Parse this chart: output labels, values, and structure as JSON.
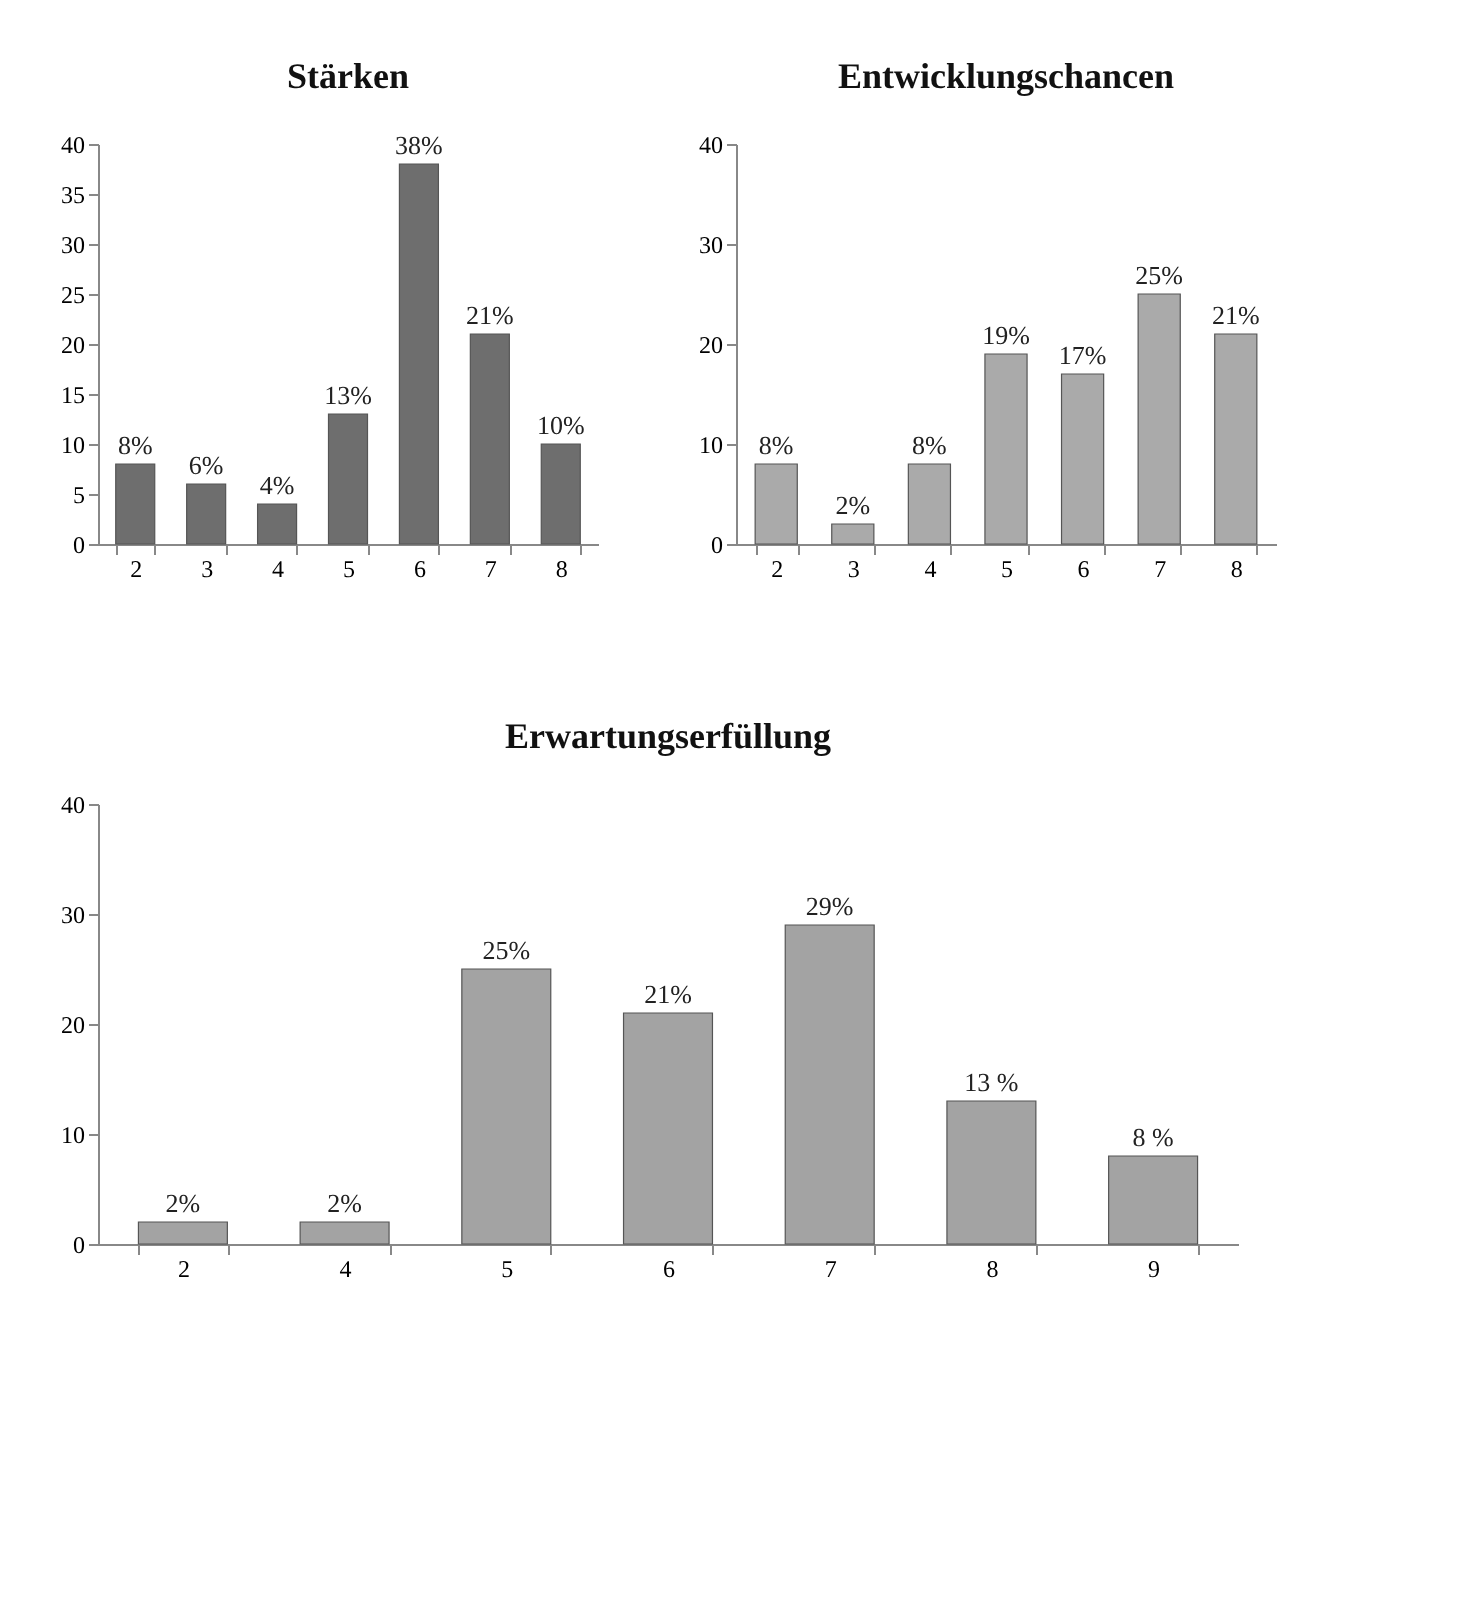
{
  "chart_data": [
    {
      "type": "bar",
      "title": "Stärken",
      "categories": [
        "2",
        "3",
        "4",
        "5",
        "6",
        "7",
        "8"
      ],
      "values": [
        8,
        6,
        4,
        13,
        38,
        21,
        10
      ],
      "value_labels": [
        "8%",
        "6%",
        "4%",
        "13%",
        "38%",
        "21%",
        "10%"
      ],
      "color": "#6e6e6e",
      "ylim": [
        0,
        40
      ],
      "yticks": [
        0,
        5,
        10,
        15,
        20,
        25,
        30,
        35,
        40
      ],
      "grid": false
    },
    {
      "type": "bar",
      "title": "Entwicklungschancen",
      "categories": [
        "2",
        "3",
        "4",
        "5",
        "6",
        "7",
        "8"
      ],
      "values": [
        8,
        2,
        8,
        19,
        17,
        25,
        21
      ],
      "value_labels": [
        "8%",
        "2%",
        "8%",
        "19%",
        "17%",
        "25%",
        "21%"
      ],
      "color": "#aaaaaa",
      "ylim": [
        0,
        40
      ],
      "yticks": [
        0,
        10,
        20,
        30,
        40
      ],
      "grid": false
    },
    {
      "type": "bar",
      "title": "Erwartungserfüllung",
      "categories": [
        "2",
        "4",
        "5",
        "6",
        "7",
        "8",
        "9"
      ],
      "values": [
        2,
        2,
        25,
        21,
        29,
        13,
        8
      ],
      "value_labels": [
        "2%",
        "2%",
        "25%",
        "21%",
        "29%",
        "13 %",
        "8 %"
      ],
      "color": "#a3a3a3",
      "ylim": [
        0,
        40
      ],
      "yticks": [
        0,
        10,
        20,
        30,
        40
      ],
      "grid": false
    }
  ]
}
